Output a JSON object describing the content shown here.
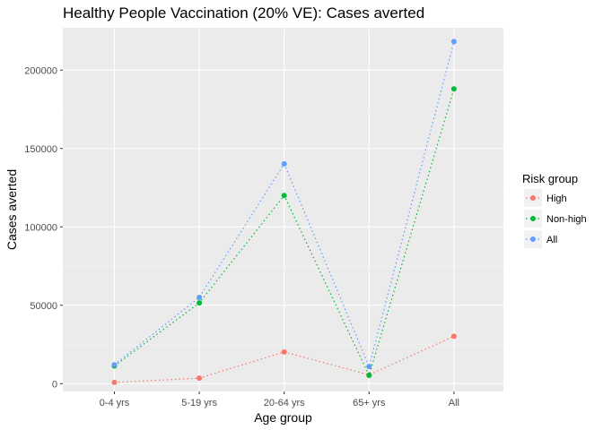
{
  "chart_data": {
    "type": "line",
    "title": "Healthy People Vaccination (20% VE): Cases averted",
    "xlabel": "Age group",
    "ylabel": "Cases averted",
    "categories": [
      "0-4 yrs",
      "5-19 yrs",
      "20-64 yrs",
      "65+ yrs",
      "All"
    ],
    "ylim": [
      -5000,
      227000
    ],
    "yticks": [
      0,
      50000,
      100000,
      150000,
      200000
    ],
    "grid": true,
    "line_style": "dotted",
    "legend": {
      "title": "Risk group",
      "placement": "right"
    },
    "series": [
      {
        "name": "High",
        "color": "#F8766D",
        "values": [
          800,
          3500,
          20200,
          5600,
          30200
        ]
      },
      {
        "name": "Non-high",
        "color": "#00BA38",
        "values": [
          11300,
          51500,
          120000,
          5300,
          188000
        ]
      },
      {
        "name": "All",
        "color": "#619CFF",
        "values": [
          12100,
          55000,
          140200,
          10900,
          218200
        ]
      }
    ]
  }
}
